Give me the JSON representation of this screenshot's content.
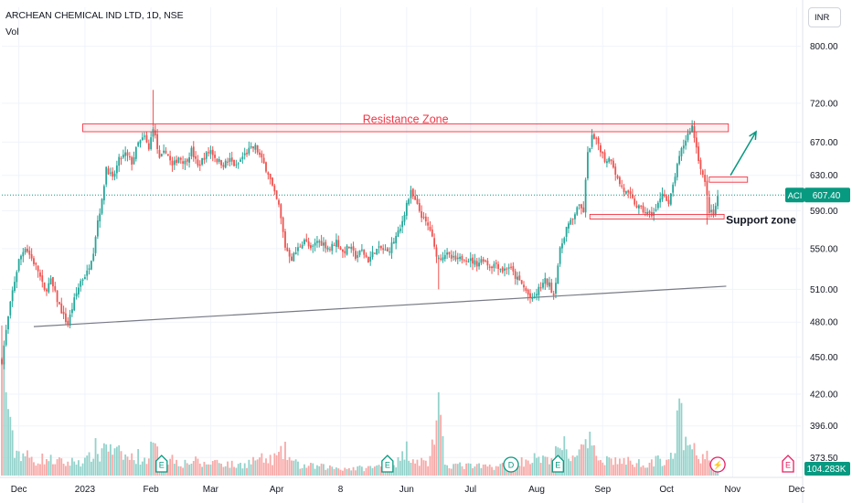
{
  "header": {
    "title": "ARCHEAN CHEMICAL IND LTD, 1D, NSE",
    "volume_label": "Vol",
    "currency": "INR"
  },
  "annotations": {
    "resistance": "Resistance Zone",
    "support": "Support zone"
  },
  "price_tag": {
    "symbol": "ACI",
    "value": "607.40",
    "numeric": 607.4
  },
  "volume_tag": {
    "value": "104.283K"
  },
  "colors": {
    "up": "#26a69a",
    "down": "#ef5350",
    "up_volume": "#93d2cb",
    "down_volume": "#f7a9a7",
    "resistance_text": "#f23645",
    "arrow": "#089981",
    "price_tag": "#089981",
    "volume_tag": "#089981",
    "trendline": "#787b86",
    "event_earnings": "#089981",
    "event_dividend": "#089981",
    "event_future": "#e91e63"
  },
  "chart_data": {
    "type": "candlestick",
    "yscale": "log",
    "ylim": [
      360,
      860
    ],
    "yticks": [
      "373.50",
      "396.00",
      "420.00",
      "450.00",
      "480.00",
      "510.00",
      "550.00",
      "590.00",
      "630.00",
      "670.00",
      "720.00",
      "800.00"
    ],
    "xticks": [
      {
        "label": "Dec",
        "day": 8
      },
      {
        "label": "2023",
        "day": 39
      },
      {
        "label": "Feb",
        "day": 70
      },
      {
        "label": "Mar",
        "day": 98
      },
      {
        "label": "Apr",
        "day": 129
      },
      {
        "label": "8",
        "day": 159
      },
      {
        "label": "Jun",
        "day": 190
      },
      {
        "label": "Jul",
        "day": 220
      },
      {
        "label": "Aug",
        "day": 251
      },
      {
        "label": "Sep",
        "day": 282
      },
      {
        "label": "Oct",
        "day": 312
      },
      {
        "label": "Nov",
        "day": 343
      },
      {
        "label": "Dec",
        "day": 373
      }
    ],
    "price_path": [
      [
        0,
        447
      ],
      [
        2,
        472
      ],
      [
        5,
        508
      ],
      [
        8,
        538
      ],
      [
        11,
        552
      ],
      [
        14,
        540
      ],
      [
        17,
        528
      ],
      [
        20,
        508
      ],
      [
        23,
        518
      ],
      [
        26,
        500
      ],
      [
        29,
        485
      ],
      [
        31,
        478
      ],
      [
        34,
        500
      ],
      [
        37,
        518
      ],
      [
        40,
        526
      ],
      [
        43,
        548
      ],
      [
        45,
        580
      ],
      [
        47,
        600
      ],
      [
        49,
        640
      ],
      [
        52,
        625
      ],
      [
        55,
        648
      ],
      [
        58,
        655
      ],
      [
        61,
        645
      ],
      [
        64,
        668
      ],
      [
        67,
        676
      ],
      [
        69,
        660
      ],
      [
        71,
        690
      ],
      [
        74,
        648
      ],
      [
        77,
        660
      ],
      [
        80,
        640
      ],
      [
        83,
        652
      ],
      [
        86,
        645
      ],
      [
        89,
        660
      ],
      [
        92,
        640
      ],
      [
        95,
        652
      ],
      [
        98,
        660
      ],
      [
        101,
        648
      ],
      [
        104,
        643
      ],
      [
        107,
        648
      ],
      [
        110,
        640
      ],
      [
        113,
        652
      ],
      [
        116,
        660
      ],
      [
        119,
        664
      ],
      [
        122,
        648
      ],
      [
        125,
        633
      ],
      [
        128,
        608
      ],
      [
        130,
        595
      ],
      [
        133,
        552
      ],
      [
        136,
        540
      ],
      [
        139,
        550
      ],
      [
        142,
        560
      ],
      [
        145,
        548
      ],
      [
        148,
        558
      ],
      [
        151,
        555
      ],
      [
        154,
        550
      ],
      [
        157,
        558
      ],
      [
        160,
        546
      ],
      [
        163,
        552
      ],
      [
        166,
        542
      ],
      [
        169,
        548
      ],
      [
        172,
        538
      ],
      [
        175,
        548
      ],
      [
        178,
        550
      ],
      [
        181,
        546
      ],
      [
        184,
        558
      ],
      [
        187,
        570
      ],
      [
        190,
        598
      ],
      [
        192,
        610
      ],
      [
        195,
        595
      ],
      [
        198,
        580
      ],
      [
        201,
        570
      ],
      [
        203,
        550
      ],
      [
        205,
        540
      ],
      [
        208,
        545
      ],
      [
        211,
        540
      ],
      [
        214,
        538
      ],
      [
        217,
        542
      ],
      [
        220,
        538
      ],
      [
        223,
        535
      ],
      [
        226,
        540
      ],
      [
        229,
        532
      ],
      [
        232,
        535
      ],
      [
        235,
        528
      ],
      [
        238,
        532
      ],
      [
        241,
        522
      ],
      [
        244,
        515
      ],
      [
        247,
        505
      ],
      [
        249,
        499
      ],
      [
        252,
        510
      ],
      [
        255,
        518
      ],
      [
        257,
        514
      ],
      [
        259,
        505
      ],
      [
        262,
        548
      ],
      [
        265,
        572
      ],
      [
        268,
        580
      ],
      [
        270,
        595
      ],
      [
        273,
        590
      ],
      [
        275,
        655
      ],
      [
        277,
        676
      ],
      [
        280,
        668
      ],
      [
        283,
        648
      ],
      [
        286,
        650
      ],
      [
        289,
        625
      ],
      [
        292,
        612
      ],
      [
        295,
        605
      ],
      [
        298,
        595
      ],
      [
        301,
        590
      ],
      [
        304,
        585
      ],
      [
        307,
        590
      ],
      [
        310,
        612
      ],
      [
        313,
        595
      ],
      [
        316,
        630
      ],
      [
        319,
        660
      ],
      [
        322,
        680
      ],
      [
        324,
        690
      ],
      [
        327,
        650
      ],
      [
        330,
        620
      ],
      [
        332,
        590
      ],
      [
        334,
        585
      ],
      [
        336,
        605
      ]
    ],
    "volume_range": [
      0,
      3
    ],
    "volume_path": [
      [
        0,
        2.6
      ],
      [
        2,
        1.9
      ],
      [
        4,
        0.9
      ],
      [
        6,
        0.5
      ],
      [
        10,
        0.45
      ],
      [
        15,
        0.3
      ],
      [
        20,
        0.35
      ],
      [
        25,
        0.3
      ],
      [
        30,
        0.25
      ],
      [
        35,
        0.3
      ],
      [
        40,
        0.3
      ],
      [
        44,
        0.55
      ],
      [
        46,
        0.4
      ],
      [
        49,
        0.75
      ],
      [
        51,
        0.5
      ],
      [
        55,
        0.45
      ],
      [
        60,
        0.35
      ],
      [
        64,
        0.4
      ],
      [
        67,
        0.3
      ],
      [
        71,
        0.6
      ],
      [
        75,
        0.3
      ],
      [
        80,
        0.35
      ],
      [
        85,
        0.25
      ],
      [
        90,
        0.3
      ],
      [
        95,
        0.22
      ],
      [
        100,
        0.3
      ],
      [
        105,
        0.25
      ],
      [
        110,
        0.2
      ],
      [
        115,
        0.25
      ],
      [
        120,
        0.35
      ],
      [
        125,
        0.3
      ],
      [
        130,
        0.4
      ],
      [
        133,
        0.5
      ],
      [
        136,
        0.3
      ],
      [
        140,
        0.2
      ],
      [
        150,
        0.18
      ],
      [
        160,
        0.15
      ],
      [
        170,
        0.15
      ],
      [
        180,
        0.2
      ],
      [
        187,
        0.3
      ],
      [
        190,
        0.55
      ],
      [
        192,
        0.4
      ],
      [
        196,
        0.3
      ],
      [
        200,
        0.25
      ],
      [
        205,
        1.25
      ],
      [
        208,
        0.25
      ],
      [
        215,
        0.2
      ],
      [
        225,
        0.18
      ],
      [
        235,
        0.2
      ],
      [
        245,
        0.3
      ],
      [
        250,
        0.35
      ],
      [
        255,
        0.3
      ],
      [
        260,
        0.45
      ],
      [
        264,
        0.6
      ],
      [
        266,
        0.35
      ],
      [
        270,
        0.5
      ],
      [
        274,
        0.55
      ],
      [
        276,
        0.65
      ],
      [
        278,
        0.45
      ],
      [
        282,
        0.35
      ],
      [
        290,
        0.3
      ],
      [
        300,
        0.25
      ],
      [
        308,
        0.3
      ],
      [
        312,
        0.35
      ],
      [
        316,
        0.5
      ],
      [
        318,
        1.45
      ],
      [
        320,
        0.7
      ],
      [
        322,
        0.55
      ],
      [
        325,
        0.5
      ],
      [
        328,
        0.35
      ],
      [
        332,
        0.4
      ],
      [
        334,
        0.2
      ],
      [
        336,
        0.15
      ]
    ],
    "resistance_zone": {
      "x": [
        38,
        341
      ],
      "y": [
        683,
        693
      ]
    },
    "support_zone": {
      "x": [
        276,
        339
      ],
      "y": [
        581,
        586
      ]
    },
    "breakout_box": {
      "x": [
        332,
        350
      ],
      "y": [
        622,
        628
      ]
    },
    "arrow": {
      "from": [
        342,
        630
      ],
      "to": [
        354,
        683
      ]
    },
    "trendline": {
      "from": [
        15,
        476
      ],
      "to": [
        340,
        513
      ]
    },
    "events": [
      {
        "type": "earnings",
        "symbol": "E",
        "day": 75
      },
      {
        "type": "earnings",
        "symbol": "E",
        "day": 181
      },
      {
        "type": "dividend",
        "symbol": "D",
        "day": 239
      },
      {
        "type": "earnings",
        "symbol": "E",
        "day": 261
      },
      {
        "type": "split",
        "symbol": "⚡",
        "day": 336
      },
      {
        "type": "earnings",
        "symbol": "E",
        "day": 369
      }
    ]
  }
}
